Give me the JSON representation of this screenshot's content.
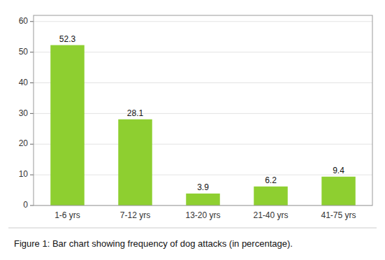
{
  "chart_data": {
    "type": "bar",
    "title": "Figure 1: Bar chart showing frequency of dog attacks (in percentage).",
    "categories": [
      "1-6 yrs",
      "7-12 yrs",
      "13-20 yrs",
      "21-40 yrs",
      "41-75 yrs"
    ],
    "values": [
      52.3,
      28.1,
      3.9,
      6.2,
      9.4
    ],
    "color": "#8ecf30",
    "ylim": [
      0,
      62
    ],
    "yticks": [
      0,
      10,
      20,
      30,
      40,
      50,
      60
    ],
    "grid": true,
    "data_labels": true
  }
}
